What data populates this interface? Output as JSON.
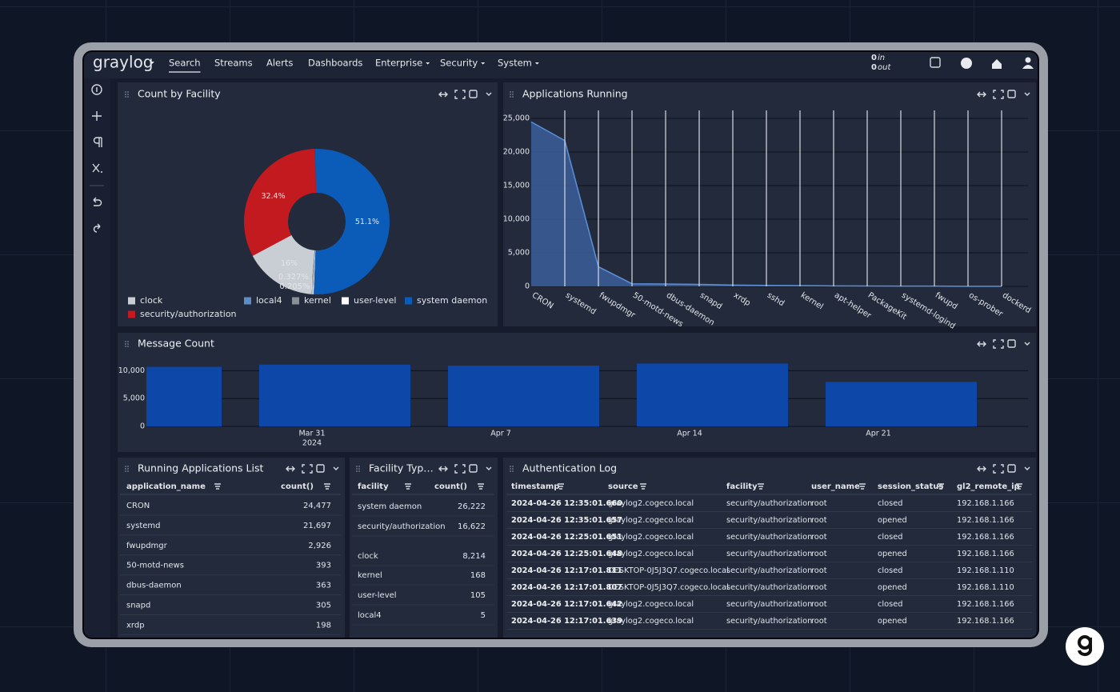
{
  "nav": {
    "logo": "graylog",
    "items": [
      "Search",
      "Streams",
      "Alerts",
      "Dashboards",
      "Enterprise",
      "Security",
      "System"
    ],
    "throughput": [
      {
        "count": "0",
        "label": "in"
      },
      {
        "count": "0",
        "label": "out"
      }
    ]
  },
  "chart_data": [
    {
      "type": "pie",
      "title": "Count by Facility",
      "categories": [
        "clock",
        "local4",
        "kernel",
        "user-level",
        "system daemon",
        "security/authorization"
      ],
      "values": [
        16,
        0.01,
        0.327,
        0.205,
        51.1,
        32.4
      ],
      "value_labels": [
        "16%",
        null,
        "0.327%",
        "0.205%",
        "51.1%",
        "32.4%"
      ],
      "colors": [
        "#c9cdd4",
        "#5b8ec4",
        "#8a8f98",
        "#ffffff",
        "#0b5cb8",
        "#c21a1f"
      ]
    },
    {
      "type": "area",
      "title": "Applications Running",
      "categories": [
        "CRON",
        "systemd",
        "fwupdmgr",
        "50-motd-news",
        "dbus-daemon",
        "snapd",
        "xrdp",
        "sshd",
        "kernel",
        "apt-helper",
        "PackageKit",
        "systemd-logind",
        "fwupd",
        "os-prober",
        "dockerd"
      ],
      "values": [
        24477,
        21697,
        2926,
        393,
        363,
        305,
        198,
        150,
        120,
        80,
        60,
        50,
        40,
        20,
        10
      ],
      "ylim": [
        0,
        25000
      ],
      "yticks": [
        0,
        {
          "value": 5000,
          "label": "5,000"
        },
        {
          "value": 10000,
          "label": "10,000"
        },
        {
          "value": 15000,
          "label": "15,000"
        },
        {
          "value": 20000,
          "label": "20,000"
        },
        {
          "value": 25000,
          "label": "25,000"
        }
      ],
      "grid": true,
      "color": "#5b8fd8"
    },
    {
      "type": "bar",
      "title": "Message Count",
      "categories": [
        null,
        "Mar 31",
        "Apr 7",
        "Apr 14",
        "Apr 21"
      ],
      "x_sublabel": "2024",
      "values": [
        10700,
        11100,
        10900,
        11300,
        8000
      ],
      "ylim": [
        0,
        11500
      ],
      "yticks": [
        0,
        {
          "value": 5000,
          "label": "5,000"
        },
        {
          "value": 10000,
          "label": "10,000"
        }
      ],
      "grid": true,
      "color": "#0d47a8"
    }
  ],
  "tables": [
    {
      "title": "Running Applications List",
      "columns": [
        "application_name",
        "count()"
      ],
      "rows": [
        [
          "CRON",
          "24,477"
        ],
        [
          "systemd",
          "21,697"
        ],
        [
          "fwupdmgr",
          "2,926"
        ],
        [
          "50-motd-news",
          "393"
        ],
        [
          "dbus-daemon",
          "363"
        ],
        [
          "snapd",
          "305"
        ],
        [
          "xrdp",
          "198"
        ]
      ]
    },
    {
      "title": "Facility Typ…",
      "columns": [
        "facility",
        "count()"
      ],
      "rows": [
        [
          "system daemon",
          "26,222"
        ],
        [
          "security/authorization",
          "16,622"
        ],
        [
          "clock",
          "8,214"
        ],
        [
          "kernel",
          "168"
        ],
        [
          "user-level",
          "105"
        ],
        [
          "local4",
          "5"
        ]
      ]
    },
    {
      "title": "Authentication Log",
      "columns": [
        "timestamp",
        "source",
        "facility",
        "user_name",
        "session_status",
        "gl2_remote_ip"
      ],
      "rows": [
        [
          "2024-04-26 12:35:01.660",
          "graylog2.cogeco.local",
          "security/authorization",
          "root",
          "closed",
          "192.168.1.166"
        ],
        [
          "2024-04-26 12:35:01.657",
          "graylog2.cogeco.local",
          "security/authorization",
          "root",
          "opened",
          "192.168.1.166"
        ],
        [
          "2024-04-26 12:25:01.651",
          "graylog2.cogeco.local",
          "security/authorization",
          "root",
          "closed",
          "192.168.1.166"
        ],
        [
          "2024-04-26 12:25:01.648",
          "graylog2.cogeco.local",
          "security/authorization",
          "root",
          "opened",
          "192.168.1.166"
        ],
        [
          "2024-04-26 12:17:01.811",
          "DESKTOP-0J5J3Q7.cogeco.local",
          "security/authorization",
          "root",
          "closed",
          "192.168.1.110"
        ],
        [
          "2024-04-26 12:17:01.807",
          "DESKTOP-0J5J3Q7.cogeco.local",
          "security/authorization",
          "root",
          "opened",
          "192.168.1.110"
        ],
        [
          "2024-04-26 12:17:01.642",
          "graylog2.cogeco.local",
          "security/authorization",
          "root",
          "closed",
          "192.168.1.166"
        ],
        [
          "2024-04-26 12:17:01.639",
          "graylog2.cogeco.local",
          "security/authorization",
          "root",
          "opened",
          "192.168.1.166"
        ]
      ]
    }
  ]
}
